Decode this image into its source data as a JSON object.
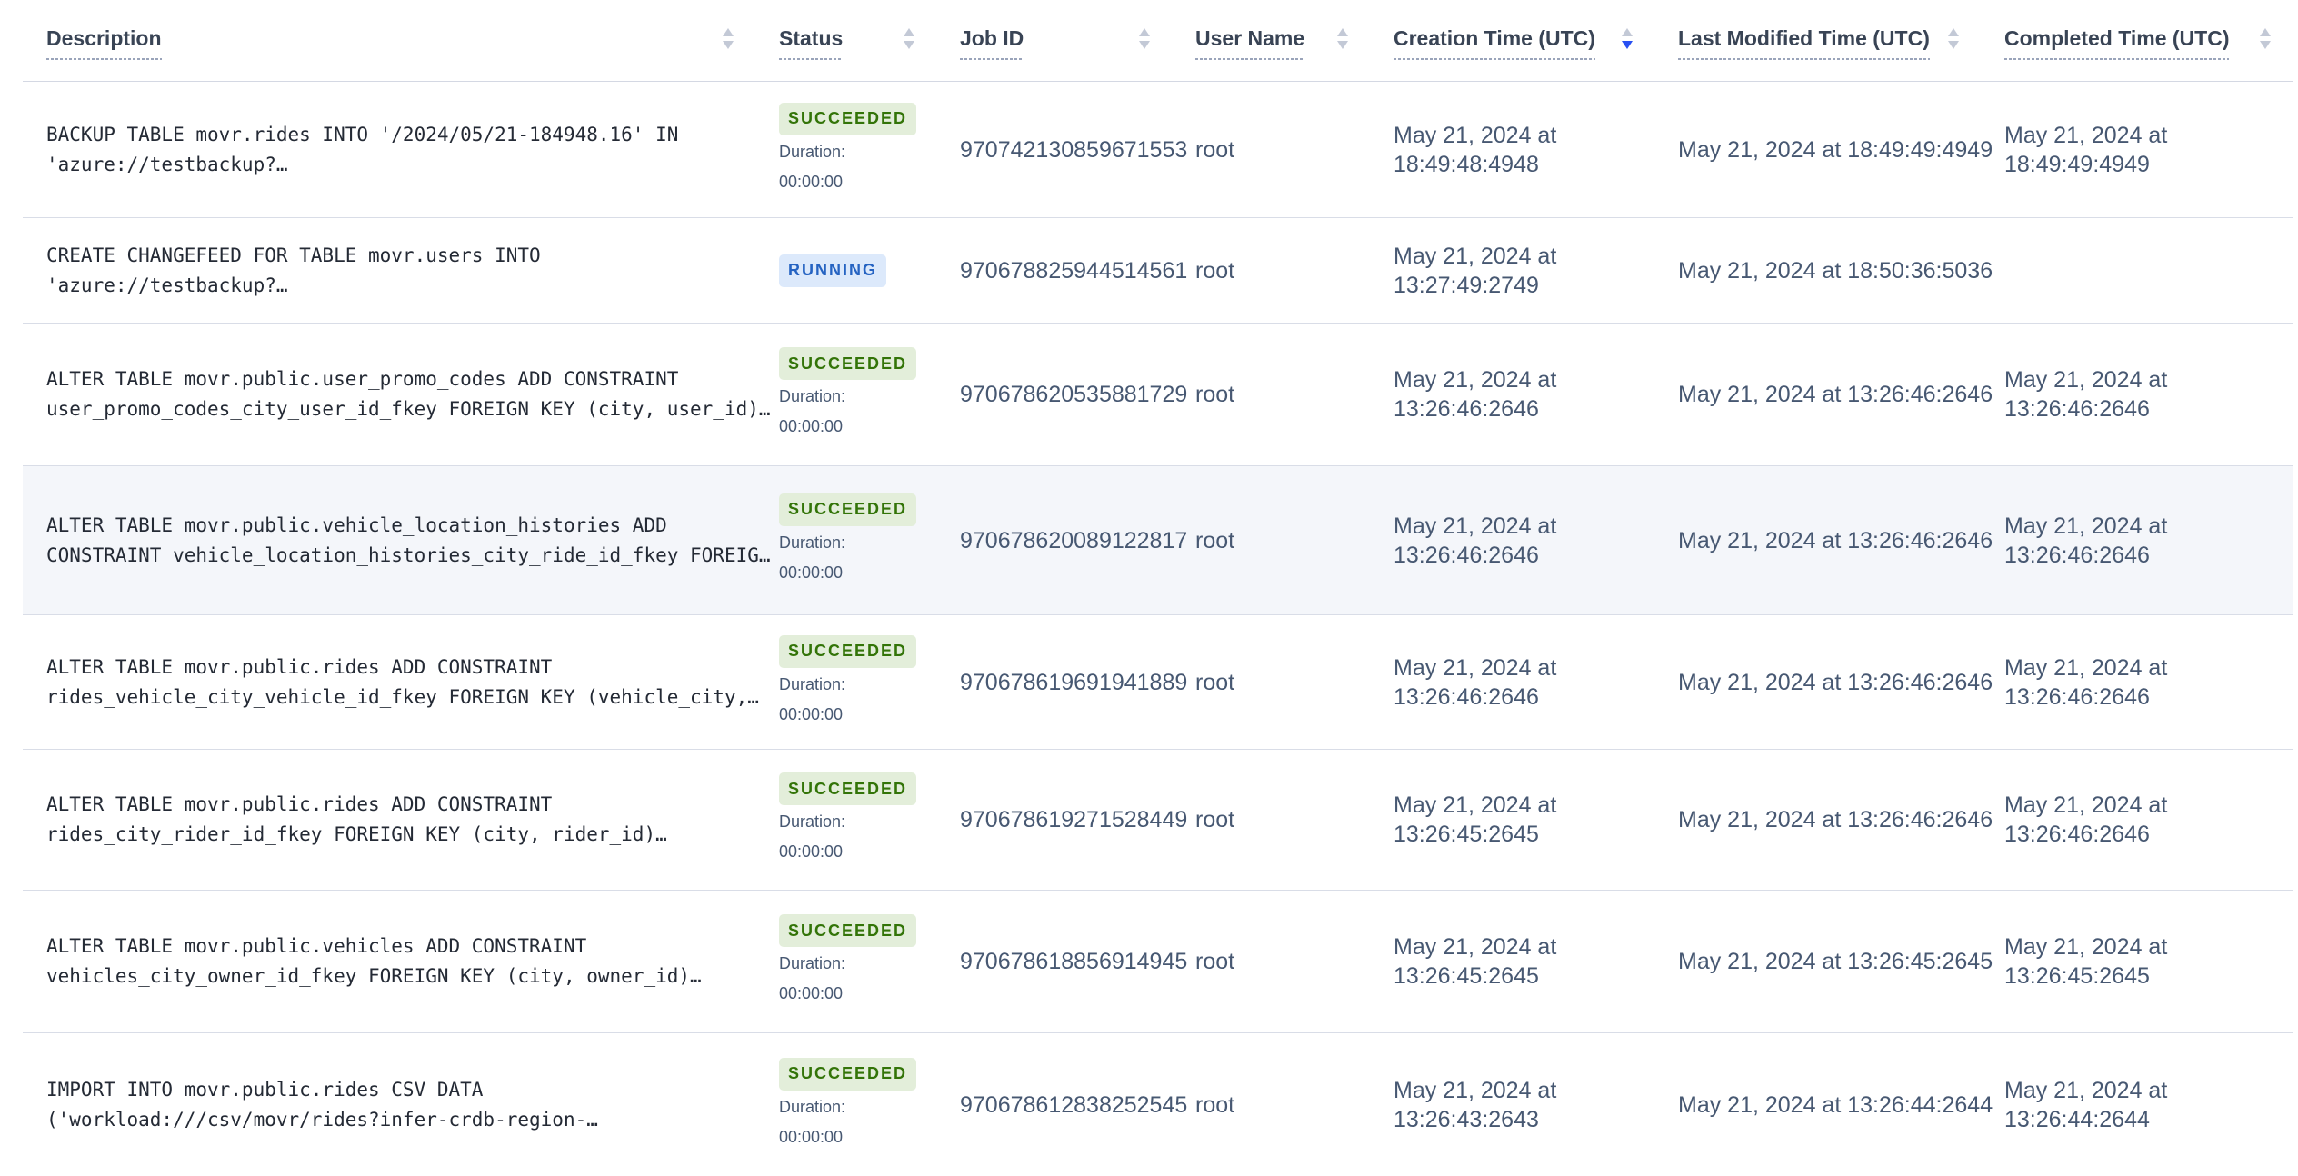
{
  "colors": {
    "header_text": "#394455",
    "body_text": "#475872",
    "description_text": "#242a35",
    "row_separator": "#d9dde7",
    "row_highlight_bg": "#f4f6fa",
    "sort_arrow_inactive": "#c3c9d6",
    "sort_arrow_active": "#2850f2",
    "badge_succeeded_bg": "#e3eeda",
    "badge_succeeded_text": "#337408",
    "badge_running_bg": "#dce9fb",
    "badge_running_text": "#2563c2"
  },
  "table": {
    "columns": [
      {
        "id": "description",
        "label": "Description",
        "sortable": true,
        "sort": "none"
      },
      {
        "id": "status",
        "label": "Status",
        "sortable": true,
        "sort": "none"
      },
      {
        "id": "job_id",
        "label": "Job ID",
        "sortable": true,
        "sort": "none"
      },
      {
        "id": "user_name",
        "label": "User Name",
        "sortable": true,
        "sort": "none"
      },
      {
        "id": "creation_time",
        "label": "Creation Time (UTC)",
        "sortable": true,
        "sort": "desc"
      },
      {
        "id": "last_modified_time",
        "label": "Last Modified Time (UTC)",
        "sortable": true,
        "sort": "none"
      },
      {
        "id": "completed_time",
        "label": "Completed Time (UTC)",
        "sortable": true,
        "sort": "none"
      }
    ],
    "rows": [
      {
        "description": {
          "lines": [
            "BACKUP TABLE movr.rides INTO '/2024/05/21-184948.16' IN",
            "'azure://testbackup?…"
          ]
        },
        "status": {
          "label": "SUCCEEDED",
          "variant": "succeeded",
          "duration_label": "Duration:",
          "duration_value": "00:00:00"
        },
        "job_id": "970742130859671553",
        "user_name": "root",
        "creation_time": {
          "lines": [
            "May 21, 2024 at",
            "18:49:48:4948"
          ]
        },
        "last_modified_time": "May 21, 2024 at 18:49:49:4949",
        "completed_time": {
          "lines": [
            "May 21, 2024 at",
            "18:49:49:4949"
          ]
        },
        "highlighted": false
      },
      {
        "description": {
          "lines": [
            "CREATE CHANGEFEED FOR TABLE movr.users INTO",
            "'azure://testbackup?…"
          ]
        },
        "status": {
          "label": "RUNNING",
          "variant": "running"
        },
        "job_id": "970678825944514561",
        "user_name": "root",
        "creation_time": {
          "lines": [
            "May 21, 2024 at",
            "13:27:49:2749"
          ]
        },
        "last_modified_time": "May 21, 2024 at 18:50:36:5036",
        "completed_time": null,
        "highlighted": false
      },
      {
        "description": {
          "lines": [
            "ALTER TABLE movr.public.user_promo_codes ADD CONSTRAINT",
            "user_promo_codes_city_user_id_fkey FOREIGN KEY (city, user_id)…"
          ]
        },
        "status": {
          "label": "SUCCEEDED",
          "variant": "succeeded",
          "duration_label": "Duration:",
          "duration_value": "00:00:00"
        },
        "job_id": "970678620535881729",
        "user_name": "root",
        "creation_time": {
          "lines": [
            "May 21, 2024 at",
            "13:26:46:2646"
          ]
        },
        "last_modified_time": "May 21, 2024 at 13:26:46:2646",
        "completed_time": {
          "lines": [
            "May 21, 2024 at",
            "13:26:46:2646"
          ]
        },
        "highlighted": false
      },
      {
        "description": {
          "lines": [
            "ALTER TABLE movr.public.vehicle_location_histories ADD",
            "CONSTRAINT vehicle_location_histories_city_ride_id_fkey FOREIG…"
          ]
        },
        "status": {
          "label": "SUCCEEDED",
          "variant": "succeeded",
          "duration_label": "Duration:",
          "duration_value": "00:00:00"
        },
        "job_id": "970678620089122817",
        "user_name": "root",
        "creation_time": {
          "lines": [
            "May 21, 2024 at",
            "13:26:46:2646"
          ]
        },
        "last_modified_time": "May 21, 2024 at 13:26:46:2646",
        "completed_time": {
          "lines": [
            "May 21, 2024 at",
            "13:26:46:2646"
          ]
        },
        "highlighted": true
      },
      {
        "description": {
          "lines": [
            "ALTER TABLE movr.public.rides ADD CONSTRAINT",
            "rides_vehicle_city_vehicle_id_fkey FOREIGN KEY (vehicle_city,…"
          ]
        },
        "status": {
          "label": "SUCCEEDED",
          "variant": "succeeded",
          "duration_label": "Duration:",
          "duration_value": "00:00:00"
        },
        "job_id": "970678619691941889",
        "user_name": "root",
        "creation_time": {
          "lines": [
            "May 21, 2024 at",
            "13:26:46:2646"
          ]
        },
        "last_modified_time": "May 21, 2024 at 13:26:46:2646",
        "completed_time": {
          "lines": [
            "May 21, 2024 at",
            "13:26:46:2646"
          ]
        },
        "highlighted": false
      },
      {
        "description": {
          "lines": [
            "ALTER TABLE movr.public.rides ADD CONSTRAINT",
            "rides_city_rider_id_fkey FOREIGN KEY (city, rider_id)…"
          ]
        },
        "status": {
          "label": "SUCCEEDED",
          "variant": "succeeded",
          "duration_label": "Duration:",
          "duration_value": "00:00:00"
        },
        "job_id": "970678619271528449",
        "user_name": "root",
        "creation_time": {
          "lines": [
            "May 21, 2024 at",
            "13:26:45:2645"
          ]
        },
        "last_modified_time": "May 21, 2024 at 13:26:46:2646",
        "completed_time": {
          "lines": [
            "May 21, 2024 at",
            "13:26:46:2646"
          ]
        },
        "highlighted": false
      },
      {
        "description": {
          "lines": [
            "ALTER TABLE movr.public.vehicles ADD CONSTRAINT",
            "vehicles_city_owner_id_fkey FOREIGN KEY (city, owner_id)…"
          ]
        },
        "status": {
          "label": "SUCCEEDED",
          "variant": "succeeded",
          "duration_label": "Duration:",
          "duration_value": "00:00:00"
        },
        "job_id": "970678618856914945",
        "user_name": "root",
        "creation_time": {
          "lines": [
            "May 21, 2024 at",
            "13:26:45:2645"
          ]
        },
        "last_modified_time": "May 21, 2024 at 13:26:45:2645",
        "completed_time": {
          "lines": [
            "May 21, 2024 at",
            "13:26:45:2645"
          ]
        },
        "highlighted": false
      },
      {
        "description": {
          "lines": [
            "IMPORT INTO movr.public.rides CSV DATA",
            "('workload:///csv/movr/rides?infer-crdb-region-…"
          ]
        },
        "status": {
          "label": "SUCCEEDED",
          "variant": "succeeded",
          "duration_label": "Duration:",
          "duration_value": "00:00:00"
        },
        "job_id": "970678612838252545",
        "user_name": "root",
        "creation_time": {
          "lines": [
            "May 21, 2024 at",
            "13:26:43:2643"
          ]
        },
        "last_modified_time": "May 21, 2024 at 13:26:44:2644",
        "completed_time": {
          "lines": [
            "May 21, 2024 at",
            "13:26:44:2644"
          ]
        },
        "highlighted": false
      }
    ]
  }
}
